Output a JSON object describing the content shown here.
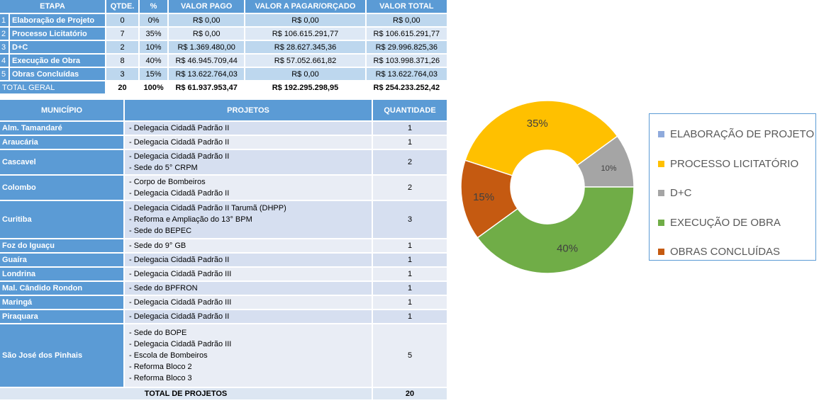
{
  "summary": {
    "headers": [
      "ETAPA",
      "QTDE.",
      "%",
      "VALOR PAGO",
      "VALOR A PAGAR/ORÇADO",
      "VALOR TOTAL"
    ],
    "rows": [
      {
        "n": "1",
        "etapa": "Elaboração de Projeto",
        "qtde": "0",
        "pct": "0%",
        "pago": "R$ 0,00",
        "pagar": "R$ 0,00",
        "total": "R$ 0,00"
      },
      {
        "n": "2",
        "etapa": "Processo Licitatório",
        "qtde": "7",
        "pct": "35%",
        "pago": "R$ 0,00",
        "pagar": "R$ 106.615.291,77",
        "total": "R$ 106.615.291,77"
      },
      {
        "n": "3",
        "etapa": "D+C",
        "qtde": "2",
        "pct": "10%",
        "pago": "R$ 1.369.480,00",
        "pagar": "R$ 28.627.345,36",
        "total": "R$ 29.996.825,36"
      },
      {
        "n": "4",
        "etapa": "Execução de Obra",
        "qtde": "8",
        "pct": "40%",
        "pago": "R$ 46.945.709,44",
        "pagar": "R$ 57.052.661,82",
        "total": "R$ 103.998.371,26"
      },
      {
        "n": "5",
        "etapa": "Obras Concluídas",
        "qtde": "3",
        "pct": "15%",
        "pago": "R$ 13.622.764,03",
        "pagar": "R$ 0,00",
        "total": "R$ 13.622.764,03"
      }
    ],
    "total": {
      "label": "TOTAL GERAL",
      "qtde": "20",
      "pct": "100%",
      "pago": "R$ 61.937.953,47",
      "pagar": "R$ 192.295.298,95",
      "total": "R$ 254.233.252,42"
    }
  },
  "projects": {
    "headers": [
      "MUNICÍPIO",
      "PROJETOS",
      "QUANTIDADE"
    ],
    "rows": [
      {
        "m": "Alm. Tamandaré",
        "p": [
          "- Delegacia Cidadã Padrão II"
        ],
        "q": "1"
      },
      {
        "m": "Araucária",
        "p": [
          "- Delegacia Cidadã Padrão II"
        ],
        "q": "1"
      },
      {
        "m": "Cascavel",
        "p": [
          "- Delegacia Cidadã Padrão II",
          "- Sede do 5° CRPM"
        ],
        "q": "2"
      },
      {
        "m": "Colombo",
        "p": [
          "- Corpo de Bombeiros",
          "- Delegacia Cidadã Padrão II"
        ],
        "q": "2"
      },
      {
        "m": "Curitiba",
        "p": [
          "- Delegacia Cidadã Padrão II Tarumã (DHPP)",
          "- Reforma e Ampliação do 13° BPM",
          "- Sede do BEPEC"
        ],
        "q": "3"
      },
      {
        "m": "Foz do Iguaçu",
        "p": [
          "- Sede do 9° GB"
        ],
        "q": "1"
      },
      {
        "m": "Guaíra",
        "p": [
          "- Delegacia Cidadã Padrão II"
        ],
        "q": "1"
      },
      {
        "m": "Londrina",
        "p": [
          "- Delegacia Cidadã Padrão III"
        ],
        "q": "1"
      },
      {
        "m": "Mal. Cândido Rondon",
        "p": [
          "- Sede do BPFRON"
        ],
        "q": "1"
      },
      {
        "m": "Maringá",
        "p": [
          "- Delegacia Cidadã Padrão III"
        ],
        "q": "1"
      },
      {
        "m": "Piraquara",
        "p": [
          "- Delegacia Cidadã Padrão II"
        ],
        "q": "1"
      },
      {
        "m": "São José dos Pinhais",
        "p": [
          "- Sede do BOPE",
          "- Delegacia Cidadã Padrão III",
          "- Escola de Bombeiros",
          "- Reforma Bloco 2",
          "- Reforma Bloco 3"
        ],
        "q": "5"
      }
    ],
    "total": {
      "label": "TOTAL DE PROJETOS",
      "q": "20"
    }
  },
  "chart_data": {
    "type": "pie",
    "donut": true,
    "categories": [
      "ELABORAÇÃO DE PROJETO",
      "PROCESSO LICITATÓRIO",
      "D+C",
      "EXECUÇÃO DE OBRA",
      "OBRAS CONCLUÍDAS"
    ],
    "values": [
      0,
      35,
      10,
      40,
      15
    ],
    "labels": [
      "",
      "35%",
      "10%",
      "40%",
      "15%"
    ],
    "colors": [
      "#8faadc",
      "#ffc000",
      "#a5a5a5",
      "#70ad47",
      "#c55a11"
    ],
    "legend": "right"
  }
}
